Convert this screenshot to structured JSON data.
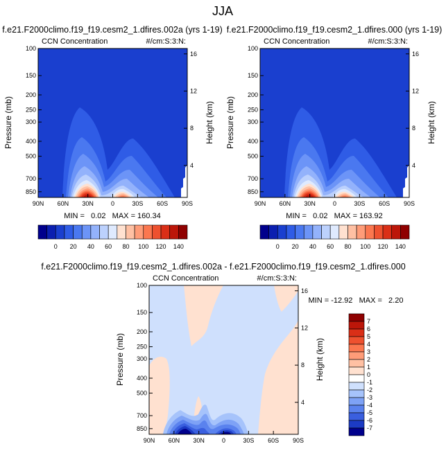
{
  "figure": {
    "title": "JJA"
  },
  "chart_data": [
    {
      "type": "heatmap",
      "id": "panel-a",
      "title": "f.e21.F2000climo.f19_f19.cesm2_1.dfires.002a (yrs 1-19)",
      "subtitle_left": "CCN Concentration",
      "subtitle_right": "#/cm:S:3:N:",
      "ylabel": "Pressure (mb)",
      "ylabel_right": "Height (km)",
      "x_ticks": [
        "90N",
        "60N",
        "30N",
        "0",
        "30S",
        "60S",
        "90S"
      ],
      "xlim": [
        90,
        -90
      ],
      "y_ticks": [
        "100",
        "150",
        "200",
        "250",
        "300",
        "400",
        "500",
        "700",
        "850"
      ],
      "y_tick_values": [
        100,
        150,
        200,
        250,
        300,
        400,
        500,
        700,
        850
      ],
      "ylim": [
        100,
        925
      ],
      "height_ticks": [
        "16",
        "12",
        "8",
        "4"
      ],
      "height_tick_values": [
        16,
        12,
        8,
        4
      ],
      "stats": "MIN =   0.02   MAX = 160.34",
      "colorbar_labels": [
        "0",
        "20",
        "40",
        "60",
        "80",
        "100",
        "120",
        "140"
      ],
      "colorbar_levels": [
        -10,
        0,
        10,
        20,
        30,
        40,
        50,
        60,
        70,
        80,
        90,
        100,
        110,
        120,
        130,
        140,
        150
      ],
      "colorbar_colors": [
        "#00008c",
        "#0b1fb0",
        "#1a3fcf",
        "#2f5ce6",
        "#4a78f0",
        "#6c94f7",
        "#93b2fb",
        "#bcd1fd",
        "#dfeafe",
        "#ffe1d0",
        "#ffc0a3",
        "#ff9c78",
        "#fb774f",
        "#ee512f",
        "#da2f17",
        "#bc1609",
        "#8f0000"
      ]
    },
    {
      "type": "heatmap",
      "id": "panel-b",
      "title": "f.e21.F2000climo.f19_f19.cesm2_1.dfires.000 (yrs 1-19)",
      "subtitle_left": "CCN Concentration",
      "subtitle_right": "#/cm:S:3:N:",
      "ylabel": "Pressure (mb)",
      "ylabel_right": "Height (km)",
      "x_ticks": [
        "90N",
        "60N",
        "30N",
        "0",
        "30S",
        "60S",
        "90S"
      ],
      "xlim": [
        90,
        -90
      ],
      "y_ticks": [
        "100",
        "150",
        "200",
        "250",
        "300",
        "400",
        "500",
        "700",
        "850"
      ],
      "y_tick_values": [
        100,
        150,
        200,
        250,
        300,
        400,
        500,
        700,
        850
      ],
      "ylim": [
        100,
        925
      ],
      "height_ticks": [
        "16",
        "12",
        "8",
        "4"
      ],
      "height_tick_values": [
        16,
        12,
        8,
        4
      ],
      "stats": "MIN =   0.02   MAX = 163.92",
      "colorbar_labels": [
        "0",
        "20",
        "40",
        "60",
        "80",
        "100",
        "120",
        "140"
      ],
      "colorbar_levels": [
        -10,
        0,
        10,
        20,
        30,
        40,
        50,
        60,
        70,
        80,
        90,
        100,
        110,
        120,
        130,
        140,
        150
      ],
      "colorbar_colors": [
        "#00008c",
        "#0b1fb0",
        "#1a3fcf",
        "#2f5ce6",
        "#4a78f0",
        "#6c94f7",
        "#93b2fb",
        "#bcd1fd",
        "#dfeafe",
        "#ffe1d0",
        "#ffc0a3",
        "#ff9c78",
        "#fb774f",
        "#ee512f",
        "#da2f17",
        "#bc1609",
        "#8f0000"
      ]
    },
    {
      "type": "heatmap",
      "id": "panel-diff",
      "title": "f.e21.F2000climo.f19_f19.cesm2_1.dfires.002a - f.e21.F2000climo.f19_f19.cesm2_1.dfires.000",
      "subtitle_left": "CCN Concentration",
      "subtitle_right": "#/cm:S:3:N:",
      "ylabel": "Pressure (mb)",
      "ylabel_right": "Height (km)",
      "x_ticks": [
        "90N",
        "60N",
        "30N",
        "0",
        "30S",
        "60S",
        "90S"
      ],
      "xlim": [
        90,
        -90
      ],
      "y_ticks": [
        "100",
        "150",
        "200",
        "250",
        "300",
        "400",
        "500",
        "700",
        "850"
      ],
      "y_tick_values": [
        100,
        150,
        200,
        250,
        300,
        400,
        500,
        700,
        850
      ],
      "ylim": [
        100,
        925
      ],
      "height_ticks": [
        "16",
        "12",
        "8",
        "4"
      ],
      "height_tick_values": [
        16,
        12,
        8,
        4
      ],
      "stats": "MIN = -12.92   MAX =   2.20",
      "colorbar_labels": [
        "7",
        "6",
        "5",
        "4",
        "3",
        "2",
        "1",
        "0",
        "-1",
        "-2",
        "-3",
        "-4",
        "-5",
        "-6",
        "-7"
      ],
      "colorbar_levels": [
        7,
        6,
        5,
        4,
        3,
        2,
        1,
        0,
        -1,
        -2,
        -3,
        -4,
        -5,
        -6,
        -7
      ],
      "colorbar_colors": [
        "#8f0000",
        "#bc1609",
        "#da2f17",
        "#ee512f",
        "#fb774f",
        "#ff9c78",
        "#ffc0a3",
        "#ffe1d0",
        "#ffffff",
        "#cfe0fd",
        "#a6c3fb",
        "#7ea2f6",
        "#5a82ee",
        "#3a5fdf",
        "#1c3bc4",
        "#00008c"
      ]
    }
  ]
}
